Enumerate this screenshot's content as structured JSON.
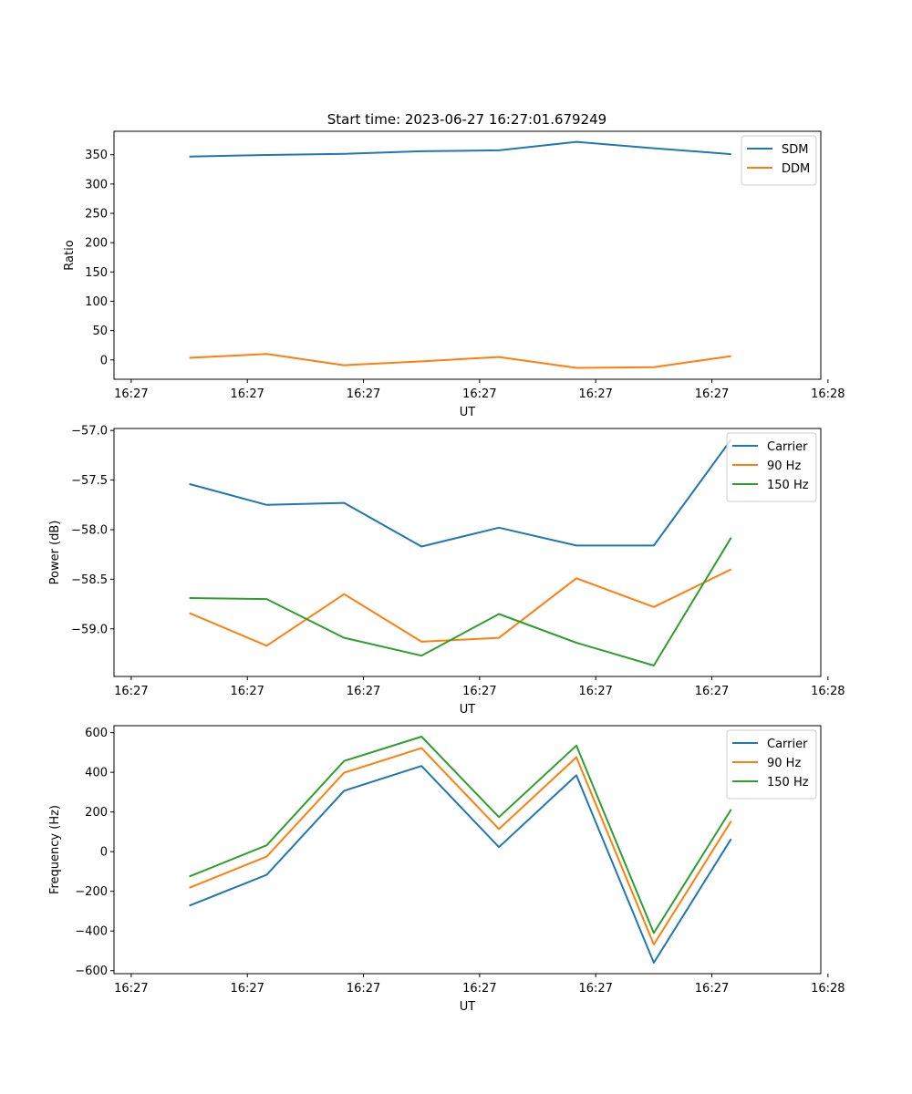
{
  "title": "Start time: 2023-06-27 16:27:01.679249",
  "chart_data": [
    {
      "type": "line",
      "title": "Start time: 2023-06-27 16:27:01.679249",
      "xlabel": "UT",
      "ylabel": "Ratio",
      "x_tick_labels": [
        "16:27",
        "16:27",
        "16:27",
        "16:27",
        "16:27",
        "16:27",
        "16:28"
      ],
      "y_ticks": [
        0,
        50,
        100,
        150,
        200,
        250,
        300,
        350
      ],
      "ylim": [
        -33,
        390
      ],
      "grid": false,
      "legend_position": "top-right",
      "series": [
        {
          "name": "SDM",
          "color": "#1f77b4",
          "values": [
            347,
            349.5,
            351.5,
            356,
            357.5,
            372,
            361,
            351
          ]
        },
        {
          "name": "DDM",
          "color": "#ff7f0e",
          "values": [
            3.5,
            10,
            -9,
            -2.5,
            5,
            -13.5,
            -12.5,
            6.5
          ]
        }
      ]
    },
    {
      "type": "line",
      "xlabel": "UT",
      "ylabel": "Power (dB)",
      "x_tick_labels": [
        "16:27",
        "16:27",
        "16:27",
        "16:27",
        "16:27",
        "16:27",
        "16:28"
      ],
      "y_ticks": [
        -59.0,
        -58.5,
        -58.0,
        -57.5,
        -57.0
      ],
      "y_tick_labels": [
        "−59.0",
        "−58.5",
        "−58.0",
        "−57.5",
        "−57.0"
      ],
      "ylim": [
        -59.48,
        -56.98
      ],
      "grid": false,
      "legend_position": "top-right",
      "series": [
        {
          "name": "Carrier",
          "color": "#1f77b4",
          "values": [
            -57.54,
            -57.75,
            -57.73,
            -58.17,
            -57.98,
            -58.16,
            -58.16,
            -57.09
          ]
        },
        {
          "name": "90 Hz",
          "color": "#ff7f0e",
          "values": [
            -58.84,
            -59.17,
            -58.65,
            -59.13,
            -59.09,
            -58.49,
            -58.78,
            -58.4
          ]
        },
        {
          "name": "150 Hz",
          "color": "#2ca02c",
          "values": [
            -58.69,
            -58.7,
            -59.09,
            -59.27,
            -58.85,
            -59.14,
            -59.37,
            -58.08
          ]
        }
      ]
    },
    {
      "type": "line",
      "xlabel": "UT",
      "ylabel": "Frequency (Hz)",
      "x_tick_labels": [
        "16:27",
        "16:27",
        "16:27",
        "16:27",
        "16:27",
        "16:27",
        "16:28"
      ],
      "y_ticks": [
        -600,
        -400,
        -200,
        0,
        200,
        400,
        600
      ],
      "y_tick_labels": [
        "−600",
        "−400",
        "−200",
        "0",
        "200",
        "400",
        "600"
      ],
      "ylim": [
        -615,
        635
      ],
      "grid": false,
      "legend_position": "top-right",
      "series": [
        {
          "name": "Carrier",
          "color": "#1f77b4",
          "values": [
            -272,
            -117,
            307,
            432,
            23,
            385,
            -560,
            64
          ]
        },
        {
          "name": "90 Hz",
          "color": "#ff7f0e",
          "values": [
            -182,
            -25,
            398,
            522,
            114,
            476,
            -468,
            154
          ]
        },
        {
          "name": "150 Hz",
          "color": "#2ca02c",
          "values": [
            -125,
            32,
            457,
            580,
            174,
            535,
            -410,
            213
          ]
        }
      ]
    }
  ]
}
